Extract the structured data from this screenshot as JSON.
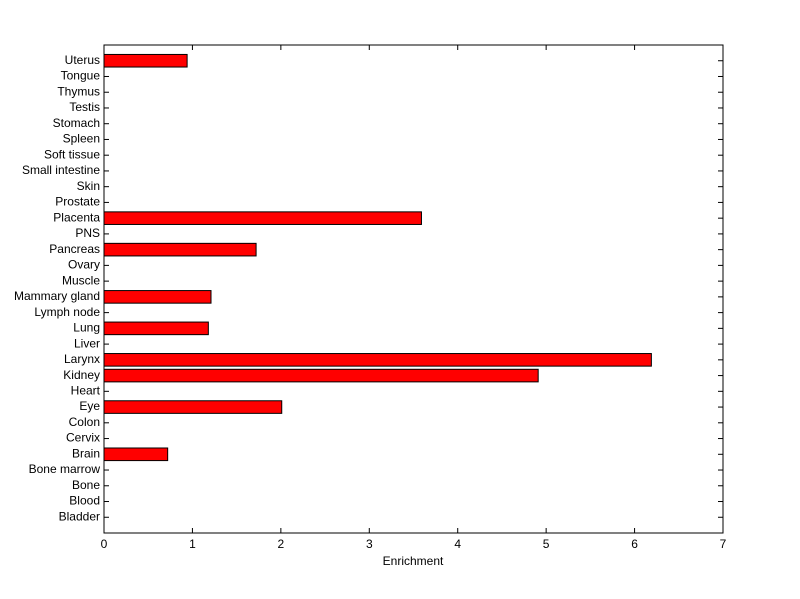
{
  "chart_data": {
    "type": "hbar",
    "x_label": "Enrichment",
    "categories": [
      "Bladder",
      "Blood",
      "Bone",
      "Bone marrow",
      "Brain",
      "Cervix",
      "Colon",
      "Eye",
      "Heart",
      "Kidney",
      "Larynx",
      "Liver",
      "Lung",
      "Lymph node",
      "Mammary gland",
      "Muscle",
      "Ovary",
      "Pancreas",
      "PNS",
      "Placenta",
      "Prostate",
      "Skin",
      "Small intestine",
      "Soft tissue",
      "Spleen",
      "Stomach",
      "Testis",
      "Thymus",
      "Tongue",
      "Uterus"
    ],
    "values": [
      0,
      0,
      0,
      0,
      0.72,
      0,
      0,
      2.01,
      0,
      4.91,
      6.19,
      0,
      1.18,
      0,
      1.21,
      0,
      0,
      1.72,
      0,
      3.59,
      0,
      0,
      0,
      0,
      0,
      0,
      0,
      0,
      0,
      0.94
    ],
    "color": "#ff0000",
    "xlim": [
      0,
      7
    ],
    "xticks": [
      0,
      1,
      2,
      3,
      4,
      5,
      6,
      7
    ],
    "grid": false
  }
}
